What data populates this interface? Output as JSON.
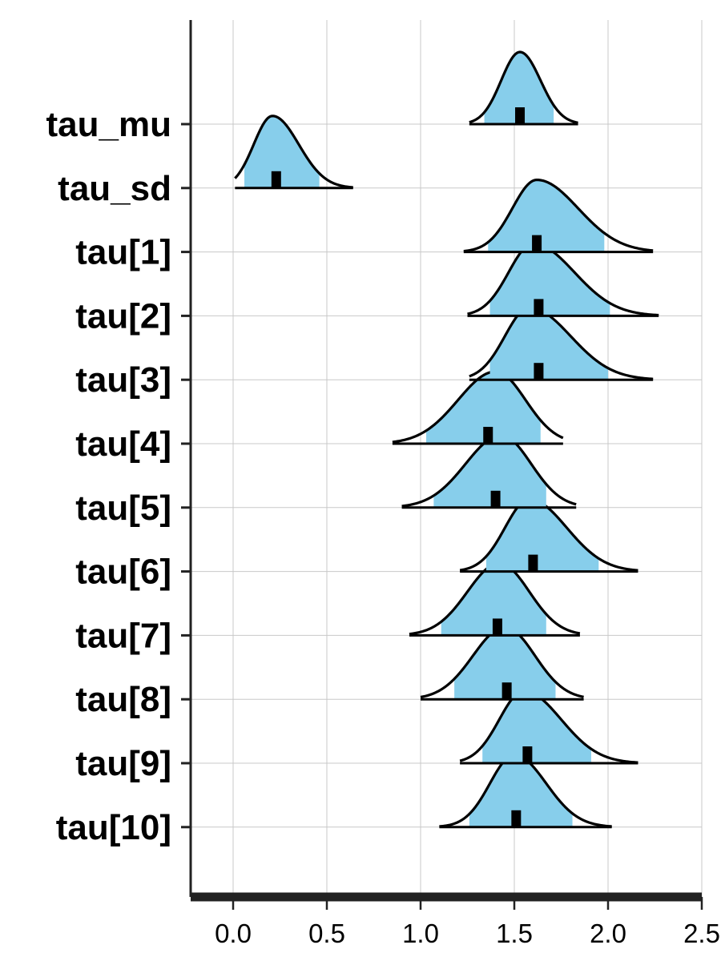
{
  "chart_data": {
    "type": "ridgeline",
    "title": "",
    "xlabel": "",
    "ylabel": "",
    "xlim": [
      -0.22,
      2.5
    ],
    "x_ticks": [
      0.0,
      0.5,
      1.0,
      1.5,
      2.0,
      2.5
    ],
    "x_tick_labels": [
      "0.0",
      "0.5",
      "1.0",
      "1.5",
      "2.0",
      "2.5"
    ],
    "grid": true,
    "fill_color": "#87CEEB",
    "line_color": "#000000",
    "median_color": "#000000",
    "series": [
      {
        "name": "tau_mu",
        "median": 1.53,
        "inner": [
          1.34,
          1.71
        ],
        "outer": [
          1.26,
          1.84
        ],
        "peak": 1.53,
        "sd_left": 0.1,
        "sd_right": 0.11
      },
      {
        "name": "tau_sd",
        "median": 0.23,
        "inner": [
          0.06,
          0.46
        ],
        "outer": [
          0.01,
          0.64
        ],
        "peak": 0.21,
        "sd_left": 0.1,
        "sd_right": 0.14
      },
      {
        "name": "tau[1]",
        "median": 1.62,
        "inner": [
          1.36,
          1.98
        ],
        "outer": [
          1.23,
          2.24
        ],
        "peak": 1.62,
        "sd_left": 0.13,
        "sd_right": 0.22
      },
      {
        "name": "tau[2]",
        "median": 1.63,
        "inner": [
          1.37,
          2.01
        ],
        "outer": [
          1.25,
          2.27
        ],
        "peak": 1.6,
        "sd_left": 0.13,
        "sd_right": 0.22
      },
      {
        "name": "tau[3]",
        "median": 1.63,
        "inner": [
          1.37,
          2.0
        ],
        "outer": [
          1.26,
          2.24
        ],
        "peak": 1.58,
        "sd_left": 0.13,
        "sd_right": 0.22
      },
      {
        "name": "tau[4]",
        "median": 1.36,
        "inner": [
          1.03,
          1.64
        ],
        "outer": [
          0.85,
          1.76
        ],
        "peak": 1.4,
        "sd_left": 0.2,
        "sd_right": 0.16
      },
      {
        "name": "tau[5]",
        "median": 1.4,
        "inner": [
          1.07,
          1.67
        ],
        "outer": [
          0.9,
          1.83
        ],
        "peak": 1.43,
        "sd_left": 0.19,
        "sd_right": 0.16
      },
      {
        "name": "tau[6]",
        "median": 1.6,
        "inner": [
          1.35,
          1.95
        ],
        "outer": [
          1.21,
          2.16
        ],
        "peak": 1.58,
        "sd_left": 0.13,
        "sd_right": 0.2
      },
      {
        "name": "tau[7]",
        "median": 1.41,
        "inner": [
          1.11,
          1.67
        ],
        "outer": [
          0.94,
          1.85
        ],
        "peak": 1.42,
        "sd_left": 0.17,
        "sd_right": 0.16
      },
      {
        "name": "tau[8]",
        "median": 1.46,
        "inner": [
          1.18,
          1.72
        ],
        "outer": [
          1.0,
          1.87
        ],
        "peak": 1.45,
        "sd_left": 0.17,
        "sd_right": 0.16
      },
      {
        "name": "tau[9]",
        "median": 1.57,
        "inner": [
          1.33,
          1.91
        ],
        "outer": [
          1.21,
          2.16
        ],
        "peak": 1.55,
        "sd_left": 0.13,
        "sd_right": 0.2
      },
      {
        "name": "tau[10]",
        "median": 1.51,
        "inner": [
          1.26,
          1.81
        ],
        "outer": [
          1.1,
          2.02
        ],
        "peak": 1.5,
        "sd_left": 0.13,
        "sd_right": 0.17
      }
    ]
  }
}
